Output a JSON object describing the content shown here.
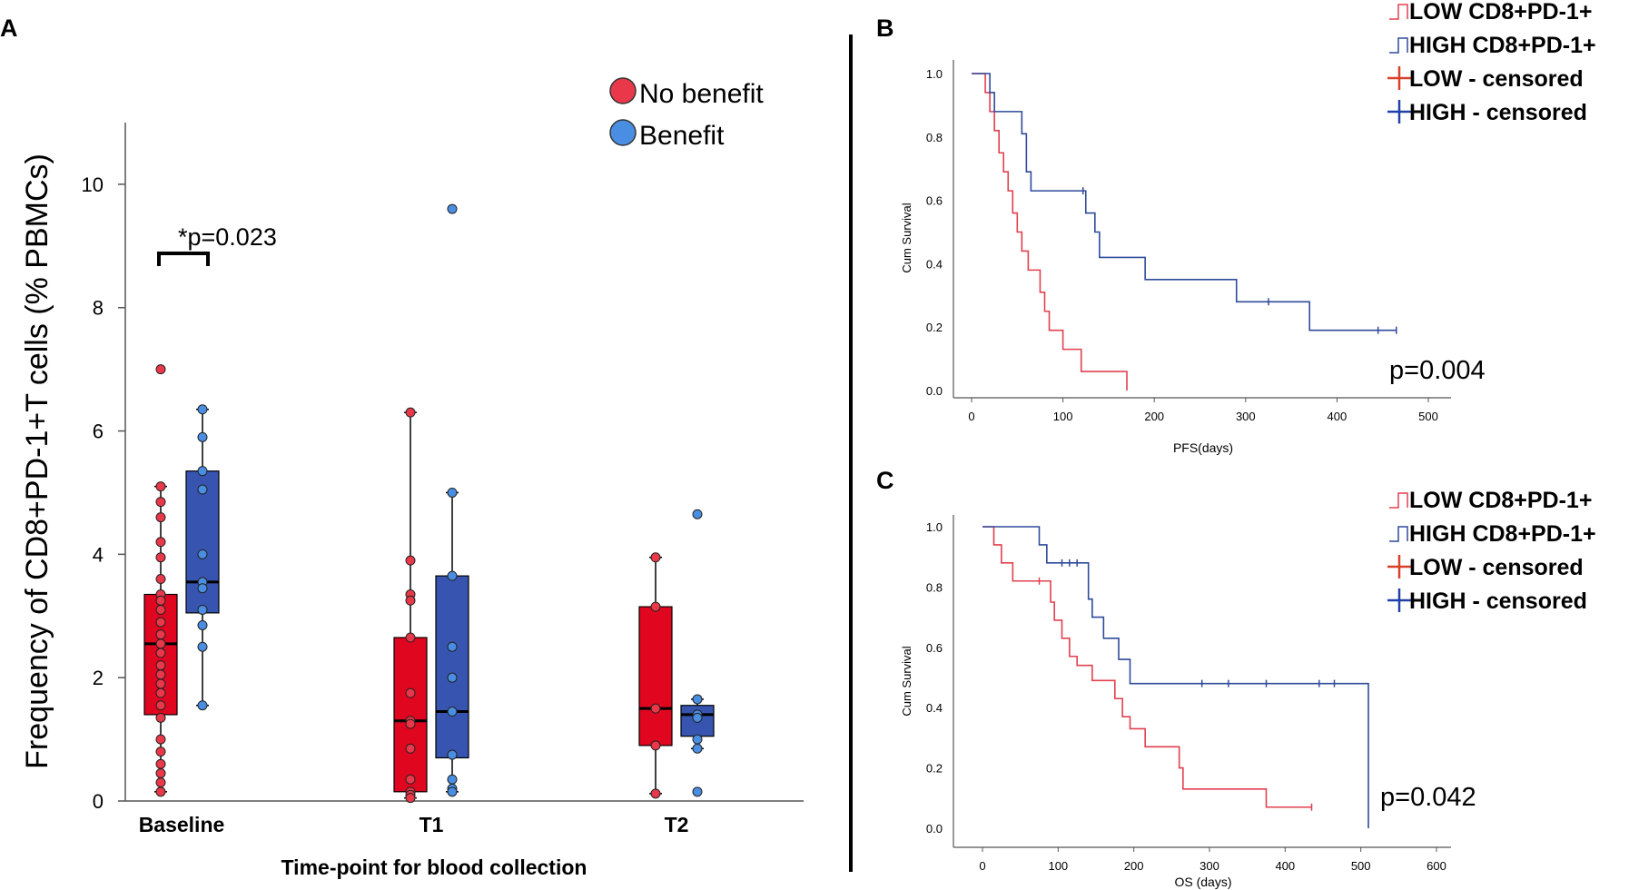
{
  "chart_data": [
    {
      "panel": "A",
      "type": "box",
      "ylabel": "Frequency of CD8+PD-1+T cells  (% PBMCs)",
      "xlabel": "Time-point for blood collection",
      "ylim": [
        0,
        11
      ],
      "yticks": [
        "0",
        "2",
        "4",
        "6",
        "8",
        "10"
      ],
      "categories": [
        "Baseline",
        "T1",
        "T2"
      ],
      "legend": [
        {
          "label": "No benefit",
          "color": "#e8384a"
        },
        {
          "label": "Benefit",
          "color": "#4a8ee3"
        }
      ],
      "colors": {
        "no_benefit_box": "#e0061f",
        "benefit_box": "#3755b0",
        "no_benefit_point": "#e8384a",
        "benefit_point": "#4a8ee3"
      },
      "annotation": "*p=0.023",
      "series": [
        {
          "name": "No benefit",
          "boxes": [
            {
              "q1": 1.4,
              "median": 2.55,
              "q3": 3.35,
              "wmin": 0.15,
              "wmax": 5.1
            },
            {
              "q1": 0.15,
              "median": 1.3,
              "q3": 2.65,
              "wmin": 0.05,
              "wmax": 6.3
            },
            {
              "q1": 0.9,
              "median": 1.5,
              "q3": 3.15,
              "wmin": 0.12,
              "wmax": 3.95
            }
          ],
          "points": [
            [
              7.0,
              5.1,
              4.85,
              4.6,
              4.2,
              3.95,
              3.6,
              3.35,
              3.25,
              3.1,
              2.9,
              2.7,
              2.55,
              2.4,
              2.2,
              2.05,
              1.9,
              1.75,
              1.55,
              1.35,
              1.0,
              0.8,
              0.6,
              0.45,
              0.3,
              0.15
            ],
            [
              6.3,
              3.9,
              3.35,
              3.25,
              2.65,
              1.75,
              1.3,
              1.25,
              0.85,
              0.35,
              0.15,
              0.1,
              0.05
            ],
            [
              3.95,
              3.15,
              1.5,
              0.9,
              0.12
            ]
          ]
        },
        {
          "name": "Benefit",
          "boxes": [
            {
              "q1": 3.05,
              "median": 3.55,
              "q3": 5.35,
              "wmin": 1.55,
              "wmax": 6.35
            },
            {
              "q1": 0.7,
              "median": 1.45,
              "q3": 3.65,
              "wmin": 0.15,
              "wmax": 5.0
            },
            {
              "q1": 1.05,
              "median": 1.4,
              "q3": 1.55,
              "wmin": 0.85,
              "wmax": 1.65
            }
          ],
          "points": [
            [
              6.35,
              5.9,
              5.35,
              5.05,
              4.0,
              3.55,
              3.45,
              3.1,
              2.85,
              2.5,
              1.55
            ],
            [
              9.6,
              5.0,
              3.65,
              2.5,
              2.0,
              1.45,
              0.75,
              0.35,
              0.2,
              0.15
            ],
            [
              4.65,
              1.65,
              1.4,
              1.35,
              1.0,
              0.85,
              0.15
            ]
          ]
        }
      ],
      "outliers_benefit": [
        null,
        9.6,
        4.65
      ],
      "outliers_nobenefit": [
        7.0,
        null,
        null
      ]
    },
    {
      "panel": "B",
      "type": "line",
      "subtype": "kaplan-meier",
      "xlabel": "PFS(days)",
      "ylabel": "Cum Survival",
      "xlim": [
        0,
        500
      ],
      "ylim": [
        0,
        1.0
      ],
      "xticks": [
        "0",
        "100",
        "200",
        "300",
        "400",
        "500"
      ],
      "yticks": [
        "0.0",
        "0.2",
        "0.4",
        "0.6",
        "0.8",
        "1.0"
      ],
      "pvalue": "p=0.004",
      "legend": [
        "LOW CD8+PD-1+",
        "HIGH CD8+PD-1+",
        "LOW - censored",
        "HIGH - censored"
      ],
      "series": [
        {
          "name": "LOW CD8+PD-1+",
          "color": "#e0404e",
          "x": [
            0,
            15,
            20,
            25,
            30,
            35,
            40,
            45,
            50,
            55,
            60,
            62,
            65,
            75,
            80,
            82,
            85,
            90,
            95,
            100,
            110,
            120,
            125,
            150,
            170
          ],
          "y": [
            1.0,
            0.94,
            0.88,
            0.82,
            0.75,
            0.69,
            0.63,
            0.56,
            0.5,
            0.44,
            0.44,
            0.38,
            0.38,
            0.31,
            0.25,
            0.25,
            0.19,
            0.19,
            0.19,
            0.13,
            0.13,
            0.06,
            0.06,
            0.06,
            0.0
          ]
        },
        {
          "name": "HIGH CD8+PD-1+",
          "color": "#2f4a9a",
          "x": [
            0,
            20,
            25,
            50,
            55,
            60,
            65,
            120,
            125,
            135,
            140,
            190,
            290,
            370,
            465
          ],
          "y": [
            1.0,
            0.94,
            0.88,
            0.88,
            0.81,
            0.69,
            0.63,
            0.63,
            0.56,
            0.5,
            0.42,
            0.35,
            0.28,
            0.19,
            0.19
          ],
          "censored_x": [
            122,
            325,
            445,
            465
          ]
        }
      ]
    },
    {
      "panel": "C",
      "type": "line",
      "subtype": "kaplan-meier",
      "xlabel": "OS (days)",
      "ylabel": "Cum Survival",
      "xlim": [
        0,
        600
      ],
      "ylim": [
        0,
        1.0
      ],
      "xticks": [
        "0",
        "100",
        "200",
        "300",
        "400",
        "500",
        "600"
      ],
      "yticks": [
        "0.0",
        "0.2",
        "0.4",
        "0.6",
        "0.8",
        "1.0"
      ],
      "pvalue": "p=0.042",
      "legend": [
        "LOW CD8+PD-1+",
        "HIGH CD8+PD-1+",
        "LOW - censored",
        "HIGH - censored"
      ],
      "series": [
        {
          "name": "LOW CD8+PD-1+",
          "color": "#e0404e",
          "x": [
            0,
            15,
            25,
            40,
            75,
            90,
            95,
            105,
            115,
            125,
            145,
            175,
            185,
            195,
            215,
            235,
            260,
            265,
            300,
            375,
            435
          ],
          "y": [
            1.0,
            0.94,
            0.88,
            0.82,
            0.82,
            0.75,
            0.69,
            0.63,
            0.57,
            0.54,
            0.49,
            0.43,
            0.37,
            0.33,
            0.27,
            0.27,
            0.2,
            0.13,
            0.13,
            0.07,
            0.07
          ],
          "censored_x": [
            75,
            435
          ]
        },
        {
          "name": "HIGH CD8+PD-1+",
          "color": "#2f4a9a",
          "x": [
            0,
            75,
            85,
            95,
            140,
            145,
            160,
            180,
            195,
            505,
            510
          ],
          "y": [
            1.0,
            0.94,
            0.88,
            0.88,
            0.76,
            0.7,
            0.63,
            0.56,
            0.48,
            0.48,
            0.0
          ],
          "censored_x": [
            105,
            115,
            125,
            290,
            325,
            375,
            445,
            465
          ]
        }
      ]
    }
  ]
}
